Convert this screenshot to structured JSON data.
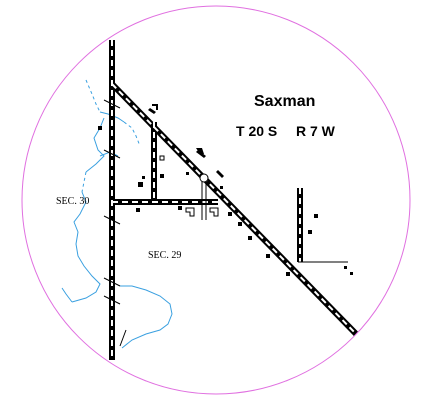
{
  "place_name": "Saxman",
  "township": "T 20 S",
  "range": "R 7 W",
  "section_labels": [
    "SEC. 30",
    "SEC. 29"
  ],
  "colors": {
    "circle": "#e070e0",
    "water": "#3aa0e0",
    "road": "#000000",
    "background": "#ffffff"
  }
}
